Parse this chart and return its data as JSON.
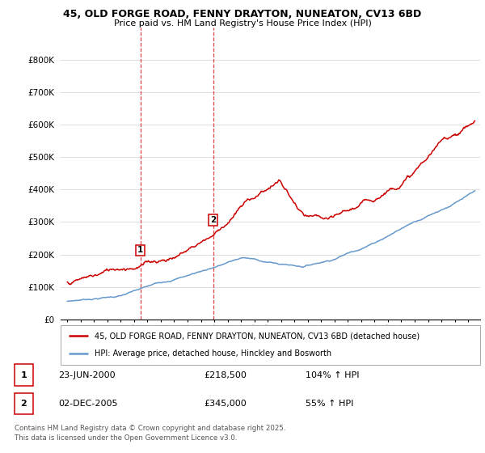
{
  "title": "45, OLD FORGE ROAD, FENNY DRAYTON, NUNEATON, CV13 6BD",
  "subtitle": "Price paid vs. HM Land Registry's House Price Index (HPI)",
  "legend_label_red": "45, OLD FORGE ROAD, FENNY DRAYTON, NUNEATON, CV13 6BD (detached house)",
  "legend_label_blue": "HPI: Average price, detached house, Hinckley and Bosworth",
  "sale1_date": "23-JUN-2000",
  "sale1_price": "£218,500",
  "sale1_hpi": "104% ↑ HPI",
  "sale2_date": "02-DEC-2005",
  "sale2_price": "£345,000",
  "sale2_hpi": "55% ↑ HPI",
  "ylim_min": 0,
  "ylim_max": 900000,
  "yticks": [
    0,
    100000,
    200000,
    300000,
    400000,
    500000,
    600000,
    700000,
    800000
  ],
  "ytick_labels": [
    "£0",
    "£100K",
    "£200K",
    "£300K",
    "£400K",
    "£500K",
    "£600K",
    "£700K",
    "£800K"
  ],
  "color_red": "#cc0000",
  "color_blue": "#6699cc",
  "color_vline": "#dd4444",
  "background_color": "#ffffff",
  "grid_color": "#dddddd",
  "sale1_year": 2000.47,
  "sale2_year": 2005.92,
  "footer": "Contains HM Land Registry data © Crown copyright and database right 2025.\nThis data is licensed under the Open Government Licence v3.0."
}
